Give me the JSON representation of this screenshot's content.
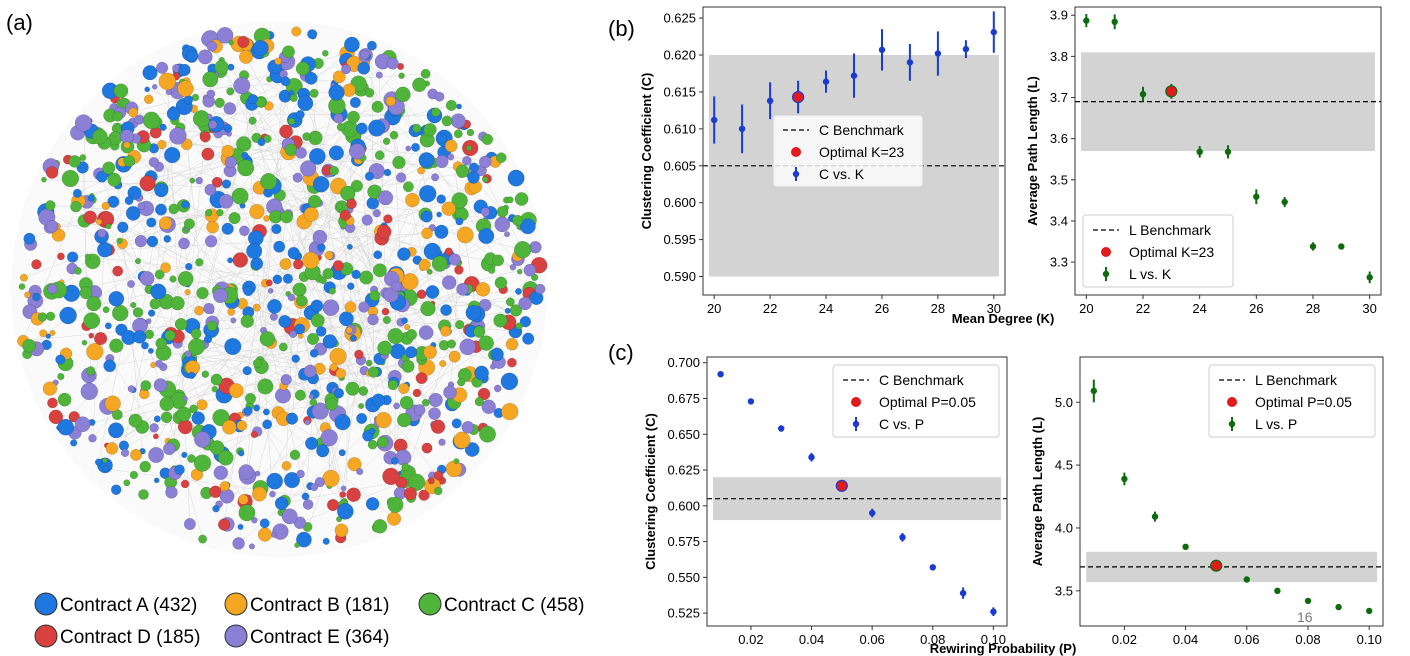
{
  "panels": {
    "a": "(a)",
    "b": "(b)",
    "c": "(c)"
  },
  "network": {
    "legend": [
      {
        "label": "Contract A (432)",
        "color": "#1f77e0"
      },
      {
        "label": "Contract B (181)",
        "color": "#f5a623"
      },
      {
        "label": "Contract C (458)",
        "color": "#4fb53a"
      },
      {
        "label": "Contract D (185)",
        "color": "#d94040"
      },
      {
        "label": "Contract E (364)",
        "color": "#8b7fd6"
      }
    ]
  },
  "page_number": "16",
  "shared_xlabels": {
    "b": "Mean Degree (K)",
    "c": "Rewiring Probability (P)"
  },
  "chart_data": [
    {
      "id": "b_left",
      "type": "scatter",
      "xlabel": "",
      "ylabel": "Clustering Coefficient (C)",
      "xlim": [
        19.6,
        30.4
      ],
      "ylim": [
        0.5875,
        0.6265
      ],
      "xticks": [
        20,
        22,
        24,
        26,
        28,
        30
      ],
      "yticks": [
        0.59,
        0.595,
        0.6,
        0.605,
        0.61,
        0.615,
        0.62,
        0.625
      ],
      "ytick_labels": [
        "0.590",
        "0.595",
        "0.600",
        "0.605",
        "0.610",
        "0.615",
        "0.620",
        "0.625"
      ],
      "band": [
        0.59,
        0.62
      ],
      "benchmark": 0.605,
      "series": [
        {
          "name": "C vs. K",
          "color": "#1a3bd1",
          "x": [
            20,
            21,
            22,
            23,
            24,
            25,
            26,
            27,
            28,
            29,
            30
          ],
          "y": [
            0.6112,
            0.61,
            0.6138,
            0.6143,
            0.6164,
            0.6172,
            0.6207,
            0.619,
            0.6202,
            0.6208,
            0.6231
          ],
          "err": [
            0.0032,
            0.0033,
            0.0025,
            0.0022,
            0.0015,
            0.003,
            0.0028,
            0.0025,
            0.003,
            0.0012,
            0.0028
          ]
        }
      ],
      "optimal": {
        "x": 23,
        "y": 0.6143,
        "label": "Optimal K=23"
      },
      "legend": {
        "position": "center",
        "entries": [
          "C Benchmark",
          "Optimal K=23",
          "C vs. K"
        ]
      }
    },
    {
      "id": "b_right",
      "type": "scatter",
      "xlabel": "",
      "ylabel": "Average Path Length (L)",
      "xlim": [
        19.6,
        30.4
      ],
      "ylim": [
        3.22,
        3.92
      ],
      "xticks": [
        20,
        22,
        24,
        26,
        28,
        30
      ],
      "yticks": [
        3.3,
        3.4,
        3.5,
        3.6,
        3.7,
        3.8,
        3.9
      ],
      "ytick_labels": [
        "3.3",
        "3.4",
        "3.5",
        "3.6",
        "3.7",
        "3.8",
        "3.9"
      ],
      "band": [
        3.57,
        3.81
      ],
      "benchmark": 3.69,
      "series": [
        {
          "name": "L vs. K",
          "color": "#0d6b0d",
          "x": [
            20,
            21,
            22,
            23,
            24,
            25,
            26,
            27,
            28,
            29,
            30
          ],
          "y": [
            3.887,
            3.884,
            3.708,
            3.715,
            3.568,
            3.568,
            3.459,
            3.446,
            3.338,
            3.338,
            3.263
          ],
          "err": [
            0.016,
            0.018,
            0.018,
            0.018,
            0.014,
            0.016,
            0.018,
            0.012,
            0.01,
            0.006,
            0.014
          ]
        }
      ],
      "optimal": {
        "x": 23,
        "y": 3.715,
        "label": "Optimal K=23"
      },
      "legend": {
        "position": "lower-left",
        "entries": [
          "L Benchmark",
          "Optimal K=23",
          "L vs. K"
        ]
      }
    },
    {
      "id": "c_left",
      "type": "scatter",
      "xlabel": "",
      "ylabel": "Clustering Coefficient (C)",
      "xlim": [
        0.0055,
        0.1045
      ],
      "ylim": [
        0.516,
        0.704
      ],
      "xticks": [
        0.02,
        0.04,
        0.06,
        0.08,
        0.1
      ],
      "xtick_labels": [
        "0.02",
        "0.04",
        "0.06",
        "0.08",
        "0.10"
      ],
      "yticks": [
        0.525,
        0.55,
        0.575,
        0.6,
        0.625,
        0.65,
        0.675,
        0.7
      ],
      "ytick_labels": [
        "0.525",
        "0.550",
        "0.575",
        "0.600",
        "0.625",
        "0.650",
        "0.675",
        "0.700"
      ],
      "band": [
        0.59,
        0.62
      ],
      "benchmark": 0.605,
      "series": [
        {
          "name": "C vs. P",
          "color": "#1a3bd1",
          "x": [
            0.01,
            0.02,
            0.03,
            0.04,
            0.05,
            0.06,
            0.07,
            0.08,
            0.09,
            0.1
          ],
          "y": [
            0.692,
            0.673,
            0.654,
            0.634,
            0.614,
            0.595,
            0.578,
            0.557,
            0.539,
            0.526
          ],
          "err": [
            0.0015,
            0.002,
            0.0022,
            0.003,
            0.002,
            0.003,
            0.003,
            0.002,
            0.004,
            0.003
          ]
        }
      ],
      "optimal": {
        "x": 0.05,
        "y": 0.614,
        "label": "Optimal P=0.05"
      },
      "legend": {
        "position": "upper-right",
        "entries": [
          "C Benchmark",
          "Optimal P=0.05",
          "C vs. P"
        ]
      }
    },
    {
      "id": "c_right",
      "type": "scatter",
      "xlabel": "",
      "ylabel": "Average Path Length (L)",
      "xlim": [
        0.0055,
        0.1045
      ],
      "ylim": [
        3.22,
        5.36
      ],
      "xticks": [
        0.02,
        0.04,
        0.06,
        0.08,
        0.1
      ],
      "xtick_labels": [
        "0.02",
        "0.04",
        "0.06",
        "0.08",
        "0.10"
      ],
      "yticks": [
        3.5,
        4.0,
        4.5,
        5.0
      ],
      "ytick_labels": [
        "3.5",
        "4.0",
        "4.5",
        "5.0"
      ],
      "band": [
        3.57,
        3.81
      ],
      "benchmark": 3.69,
      "series": [
        {
          "name": "L vs. P",
          "color": "#0d6b0d",
          "x": [
            0.01,
            0.02,
            0.03,
            0.04,
            0.05,
            0.06,
            0.07,
            0.08,
            0.09,
            0.1
          ],
          "y": [
            5.09,
            4.39,
            4.09,
            3.85,
            3.7,
            3.59,
            3.5,
            3.42,
            3.37,
            3.34
          ],
          "err": [
            0.09,
            0.05,
            0.04,
            0.02,
            0.02,
            0.01,
            0.01,
            0.01,
            0.01,
            0.01
          ]
        }
      ],
      "optimal": {
        "x": 0.05,
        "y": 3.7,
        "label": "Optimal P=0.05"
      },
      "legend": {
        "position": "upper-right",
        "entries": [
          "L Benchmark",
          "Optimal P=0.05",
          "L vs. P"
        ]
      }
    }
  ]
}
